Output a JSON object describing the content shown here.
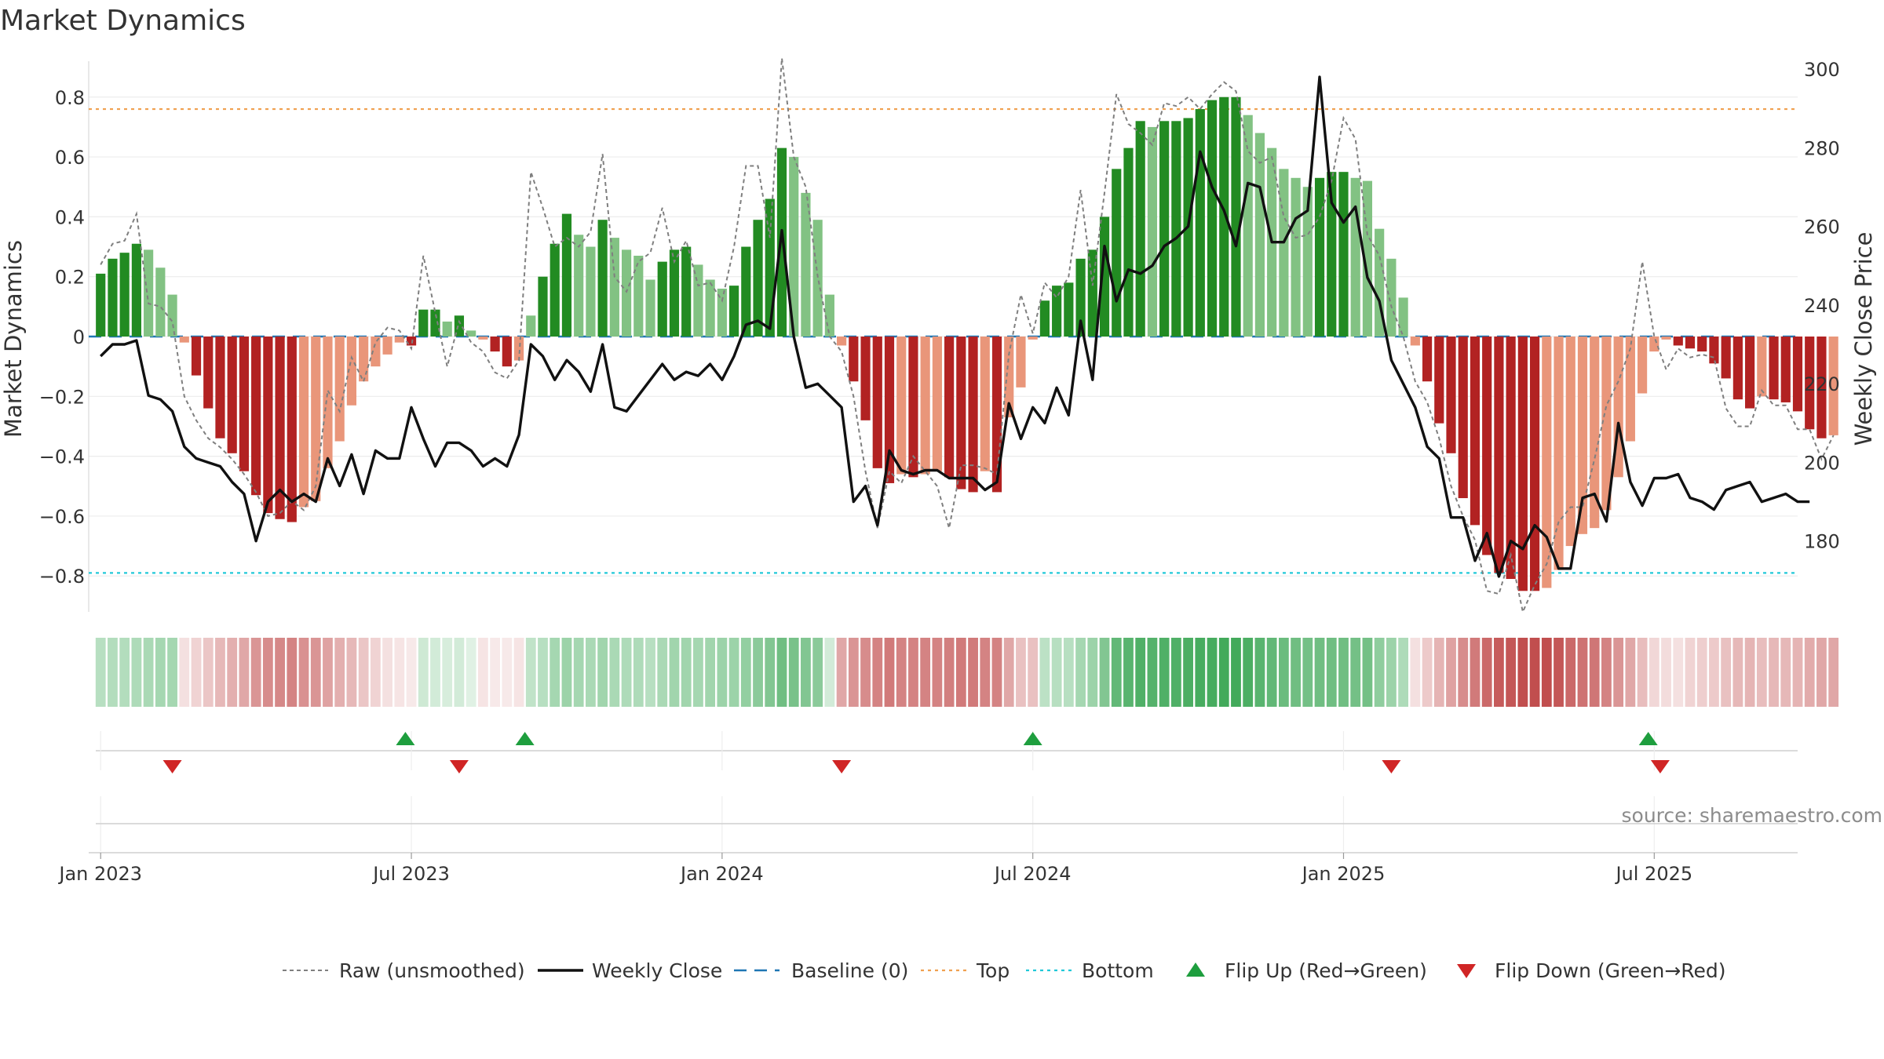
{
  "chart_data": {
    "type": "bar",
    "title": "Market Dynamics",
    "ylabel_left": "Market Dynamics",
    "ylabel_right": "Weekly Close Price",
    "source_note": "source: sharemaestro.com",
    "ylim_left": [
      -0.92,
      0.92
    ],
    "ylim_right": [
      162,
      302
    ],
    "left_ticks": [
      "0.8",
      "0.6",
      "0.4",
      "0.2",
      "0",
      "−0.2",
      "−0.4",
      "−0.6",
      "−0.8"
    ],
    "left_tick_values": [
      0.8,
      0.6,
      0.4,
      0.2,
      0,
      -0.2,
      -0.4,
      -0.6,
      -0.8
    ],
    "right_ticks": [
      "300",
      "280",
      "260",
      "240",
      "220",
      "200",
      "180"
    ],
    "right_tick_values": [
      300,
      280,
      260,
      240,
      220,
      200,
      180
    ],
    "x_ticks": [
      "Jan 2023",
      "Jul 2023",
      "Jan 2024",
      "Jul 2024",
      "Jan 2025",
      "Jul 2025"
    ],
    "x_tick_weeks": [
      0,
      26,
      52,
      78,
      104,
      130
    ],
    "x_start_week": -1,
    "x_end_week": 142,
    "top_line": 0.76,
    "bottom_line": -0.79,
    "baseline": 0,
    "dynamics": [
      0.21,
      0.26,
      0.28,
      0.31,
      0.29,
      0.23,
      0.14,
      -0.02,
      -0.13,
      -0.24,
      -0.34,
      -0.39,
      -0.45,
      -0.53,
      -0.59,
      -0.61,
      -0.62,
      -0.57,
      -0.55,
      -0.44,
      -0.35,
      -0.23,
      -0.15,
      -0.1,
      -0.06,
      -0.02,
      -0.03,
      0.09,
      0.09,
      0.05,
      0.07,
      0.02,
      -0.01,
      -0.05,
      -0.1,
      -0.08,
      0.07,
      0.2,
      0.31,
      0.41,
      0.34,
      0.3,
      0.39,
      0.33,
      0.29,
      0.27,
      0.19,
      0.25,
      0.29,
      0.3,
      0.24,
      0.19,
      0.16,
      0.17,
      0.3,
      0.39,
      0.46,
      0.63,
      0.6,
      0.48,
      0.39,
      0.14,
      -0.03,
      -0.15,
      -0.28,
      -0.44,
      -0.49,
      -0.46,
      -0.47,
      -0.46,
      -0.45,
      -0.47,
      -0.51,
      -0.52,
      -0.45,
      -0.52,
      -0.27,
      -0.17,
      -0.01,
      0.12,
      0.17,
      0.18,
      0.26,
      0.29,
      0.4,
      0.56,
      0.63,
      0.72,
      0.7,
      0.72,
      0.72,
      0.73,
      0.76,
      0.79,
      0.8,
      0.8,
      0.74,
      0.68,
      0.63,
      0.56,
      0.53,
      0.5,
      0.53,
      0.55,
      0.55,
      0.53,
      0.52,
      0.36,
      0.26,
      0.13,
      -0.03,
      -0.15,
      -0.29,
      -0.39,
      -0.54,
      -0.63,
      -0.73,
      -0.79,
      -0.81,
      -0.85,
      -0.85,
      -0.84,
      -0.78,
      -0.7,
      -0.66,
      -0.64,
      -0.58,
      -0.47,
      -0.35,
      -0.19,
      -0.05,
      -0.01,
      -0.03,
      -0.04,
      -0.05,
      -0.09,
      -0.14,
      -0.21,
      -0.24,
      -0.2,
      -0.21,
      -0.22,
      -0.25,
      -0.31,
      -0.34,
      -0.33
    ],
    "raw": [
      0.24,
      0.31,
      0.32,
      0.41,
      0.11,
      0.1,
      0.05,
      -0.2,
      -0.28,
      -0.34,
      -0.37,
      -0.41,
      -0.46,
      -0.52,
      -0.6,
      -0.59,
      -0.55,
      -0.58,
      -0.5,
      -0.18,
      -0.25,
      -0.07,
      -0.15,
      -0.02,
      0.03,
      0.02,
      -0.04,
      0.27,
      0.08,
      -0.1,
      0.05,
      -0.02,
      -0.05,
      -0.12,
      -0.14,
      -0.08,
      0.55,
      0.43,
      0.3,
      0.33,
      0.3,
      0.35,
      0.61,
      0.2,
      0.15,
      0.25,
      0.28,
      0.43,
      0.25,
      0.32,
      0.17,
      0.18,
      0.12,
      0.3,
      0.57,
      0.57,
      0.33,
      0.93,
      0.6,
      0.5,
      0.2,
      0.0,
      -0.05,
      -0.2,
      -0.45,
      -0.64,
      -0.45,
      -0.49,
      -0.4,
      -0.45,
      -0.5,
      -0.64,
      -0.43,
      -0.43,
      -0.44,
      -0.46,
      -0.06,
      0.14,
      0.01,
      0.18,
      0.13,
      0.2,
      0.49,
      0.17,
      0.48,
      0.81,
      0.71,
      0.68,
      0.64,
      0.78,
      0.77,
      0.8,
      0.76,
      0.81,
      0.85,
      0.82,
      0.62,
      0.58,
      0.6,
      0.4,
      0.33,
      0.34,
      0.4,
      0.52,
      0.73,
      0.66,
      0.34,
      0.27,
      0.1,
      0.0,
      -0.15,
      -0.22,
      -0.34,
      -0.5,
      -0.6,
      -0.68,
      -0.85,
      -0.86,
      -0.73,
      -0.92,
      -0.83,
      -0.76,
      -0.62,
      -0.57,
      -0.57,
      -0.41,
      -0.23,
      -0.15,
      -0.04,
      0.25,
      0.0,
      -0.11,
      -0.04,
      -0.07,
      -0.06,
      -0.07,
      -0.24,
      -0.3,
      -0.3,
      -0.18,
      -0.23,
      -0.23,
      -0.31,
      -0.31,
      -0.41,
      -0.33
    ],
    "weekly_close": [
      227,
      230,
      230,
      231,
      217,
      216,
      213,
      204,
      201,
      200,
      199,
      195,
      192,
      180,
      190,
      193,
      190,
      192,
      190,
      201,
      194,
      202,
      192,
      203,
      201,
      201,
      214,
      206,
      199,
      205,
      205,
      203,
      199,
      201,
      199,
      207,
      230,
      227,
      221,
      226,
      223,
      218,
      230,
      214,
      213,
      217,
      221,
      225,
      221,
      223,
      222,
      225,
      221,
      227,
      235,
      236,
      234,
      259,
      232,
      219,
      220,
      217,
      214,
      190,
      194,
      184,
      203,
      198,
      197,
      198,
      198,
      196,
      196,
      196,
      193,
      195,
      215,
      206,
      214,
      210,
      219,
      212,
      236,
      221,
      255,
      241,
      249,
      248,
      250,
      255,
      257,
      260,
      279,
      270,
      264,
      255,
      271,
      270,
      256,
      256,
      262,
      264,
      298,
      266,
      261,
      265,
      247,
      241,
      226,
      220,
      214,
      204,
      201,
      186,
      186,
      175,
      182,
      171,
      180,
      178,
      184,
      181,
      173,
      173,
      191,
      192,
      185,
      210,
      195,
      189,
      196,
      196,
      197,
      191,
      190,
      188,
      193,
      194,
      195,
      190,
      191,
      192,
      190,
      190
    ],
    "strength_strip": [
      0.32,
      0.34,
      0.34,
      0.36,
      0.38,
      0.4,
      0.4,
      0.14,
      0.2,
      0.26,
      0.32,
      0.36,
      0.4,
      0.48,
      0.52,
      0.54,
      0.56,
      0.5,
      0.48,
      0.42,
      0.36,
      0.32,
      0.26,
      0.2,
      0.14,
      0.12,
      0.1,
      0.22,
      0.2,
      0.18,
      0.2,
      0.14,
      0.12,
      0.1,
      0.1,
      0.12,
      0.28,
      0.32,
      0.4,
      0.44,
      0.4,
      0.38,
      0.42,
      0.38,
      0.36,
      0.36,
      0.32,
      0.38,
      0.42,
      0.42,
      0.4,
      0.42,
      0.44,
      0.44,
      0.48,
      0.52,
      0.56,
      0.64,
      0.6,
      0.56,
      0.52,
      0.2,
      0.4,
      0.48,
      0.52,
      0.56,
      0.6,
      0.56,
      0.56,
      0.56,
      0.56,
      0.58,
      0.6,
      0.6,
      0.56,
      0.56,
      0.4,
      0.28,
      0.28,
      0.3,
      0.32,
      0.32,
      0.4,
      0.44,
      0.56,
      0.7,
      0.74,
      0.78,
      0.76,
      0.78,
      0.78,
      0.8,
      0.82,
      0.82,
      0.84,
      0.84,
      0.8,
      0.74,
      0.7,
      0.66,
      0.64,
      0.62,
      0.64,
      0.64,
      0.64,
      0.62,
      0.62,
      0.5,
      0.44,
      0.36,
      0.14,
      0.24,
      0.34,
      0.42,
      0.52,
      0.6,
      0.68,
      0.74,
      0.76,
      0.8,
      0.8,
      0.8,
      0.76,
      0.68,
      0.64,
      0.62,
      0.56,
      0.48,
      0.4,
      0.3,
      0.18,
      0.16,
      0.14,
      0.2,
      0.22,
      0.24,
      0.28,
      0.32,
      0.34,
      0.3,
      0.32,
      0.32,
      0.34,
      0.38,
      0.4,
      0.4
    ],
    "flips_up_weeks": [
      25.5,
      35.5,
      78,
      129.5
    ],
    "flips_down_weeks": [
      6,
      30,
      62,
      108,
      130.5
    ],
    "legend": [
      {
        "label": "Raw (unsmoothed)",
        "style": "dotted-grey"
      },
      {
        "label": "Weekly Close",
        "style": "solid-black"
      },
      {
        "label": "Baseline (0)",
        "style": "dashed-blue"
      },
      {
        "label": "Top",
        "style": "dotted-orange"
      },
      {
        "label": "Bottom",
        "style": "dotted-cyan"
      },
      {
        "label": "Flip Up (Red→Green)",
        "style": "triangle-up-green"
      },
      {
        "label": "Flip Down (Green→Red)",
        "style": "triangle-down-red"
      }
    ],
    "colors": {
      "green_strong": "#228b22",
      "green_light": "#82c283",
      "red_strong": "#b22222",
      "red_light": "#e9967a",
      "baseline": "#1f77b4",
      "top": "#f0a050",
      "bottom": "#20c8d8",
      "raw": "#7f7f7f",
      "close": "#111111",
      "flip_up": "#1e9e3e",
      "flip_down": "#d02525"
    }
  }
}
